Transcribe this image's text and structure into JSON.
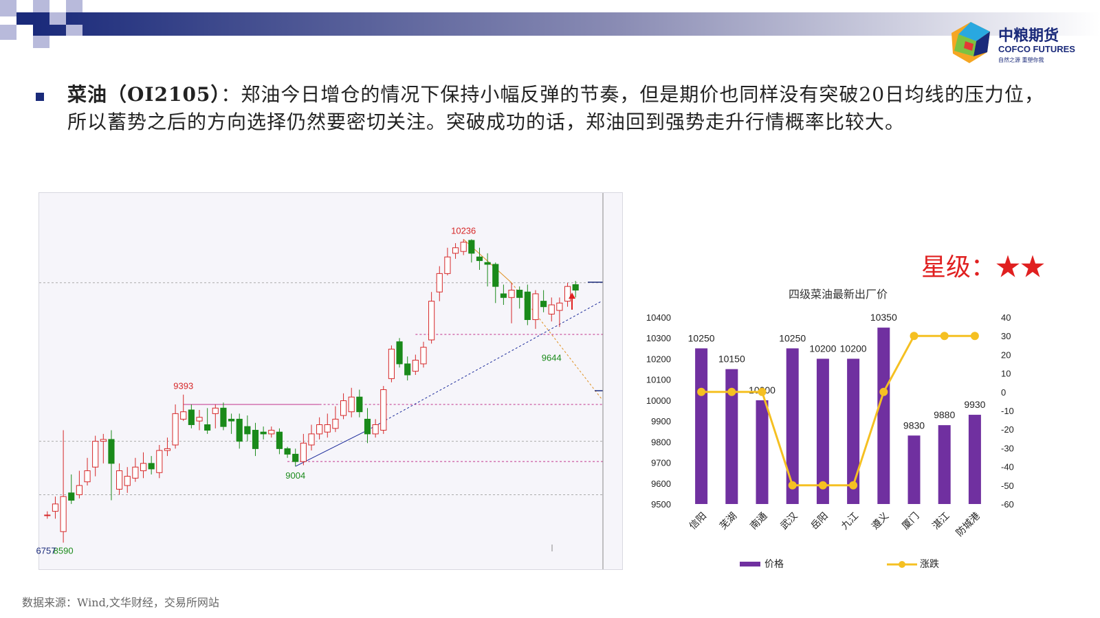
{
  "logo": {
    "cn": "中粮期货",
    "en": "COFCO FUTURES",
    "slogan": "自然之源 重塑你我"
  },
  "paragraph": {
    "lead": "菜油（OI2105）",
    "text": "：郑油今日增仓的情况下保持小幅反弹的节奏，但是期价也同样没有突破20日均线的压力位，所以蓄势之后的方向选择仍然要密切关注。突破成功的话，郑油回到强势走升行情概率比较大。"
  },
  "rating": {
    "label": "星级：",
    "stars": "★★"
  },
  "source": "数据来源：Wind,文华财经，交易所网站",
  "colors": {
    "header_dark": "#1a2a7a",
    "up": "#d62728",
    "down": "#1a8a1a",
    "bar": "#7030a0",
    "line": "#f5c022",
    "star": "#e02020"
  },
  "chart_data": [
    {
      "type": "candlestick",
      "annotations": [
        {
          "label": "10236",
          "value": 10236
        },
        {
          "label": "9393",
          "value": 9393
        },
        {
          "label": "9004",
          "value": 9004
        },
        {
          "label": "9644",
          "value": 9644
        },
        {
          "label": "8590",
          "value": 8590
        },
        {
          "label": "6757",
          "value": 6757
        }
      ],
      "ylim": [
        8550,
        10450
      ],
      "candles": [
        [
          8740,
          8740,
          8760,
          8720
        ],
        [
          8760,
          8800,
          8840,
          8720
        ],
        [
          8650,
          8840,
          9200,
          8590
        ],
        [
          8860,
          8820,
          8960,
          8800
        ],
        [
          8850,
          8900,
          8980,
          8830
        ],
        [
          8920,
          8980,
          9050,
          8900
        ],
        [
          9000,
          9140,
          9170,
          8950
        ],
        [
          9140,
          9150,
          9180,
          9020
        ],
        [
          9150,
          9020,
          9200,
          8820
        ],
        [
          8880,
          8980,
          9020,
          8850
        ],
        [
          8900,
          8950,
          9000,
          8860
        ],
        [
          8940,
          9000,
          9050,
          8920
        ],
        [
          8980,
          9020,
          9080,
          8940
        ],
        [
          9020,
          8990,
          9060,
          8960
        ],
        [
          8970,
          9090,
          9120,
          8940
        ],
        [
          9090,
          9100,
          9160,
          9060
        ],
        [
          9120,
          9290,
          9340,
          9100
        ],
        [
          9260,
          9300,
          9393,
          9250
        ],
        [
          9310,
          9230,
          9340,
          9210
        ],
        [
          9250,
          9270,
          9310,
          9200
        ],
        [
          9230,
          9200,
          9320,
          9180
        ],
        [
          9290,
          9320,
          9340,
          9210
        ],
        [
          9320,
          9220,
          9350,
          9200
        ],
        [
          9260,
          9250,
          9290,
          9180
        ],
        [
          9260,
          9140,
          9290,
          9100
        ],
        [
          9220,
          9180,
          9280,
          9140
        ],
        [
          9200,
          9100,
          9240,
          9060
        ],
        [
          9190,
          9180,
          9220,
          9150
        ],
        [
          9180,
          9200,
          9220,
          9160
        ],
        [
          9190,
          9100,
          9210,
          9070
        ],
        [
          9100,
          9070,
          9110,
          9050
        ],
        [
          9070,
          9030,
          9100,
          9004
        ],
        [
          9030,
          9130,
          9180,
          9010
        ],
        [
          9120,
          9180,
          9230,
          9090
        ],
        [
          9180,
          9230,
          9270,
          9150
        ],
        [
          9190,
          9230,
          9290,
          9160
        ],
        [
          9210,
          9260,
          9330,
          9190
        ],
        [
          9280,
          9360,
          9400,
          9260
        ],
        [
          9300,
          9380,
          9430,
          9270
        ],
        [
          9380,
          9300,
          9420,
          9270
        ],
        [
          9260,
          9180,
          9320,
          9130
        ],
        [
          9180,
          9230,
          9260,
          9160
        ],
        [
          9200,
          9420,
          9440,
          9180
        ],
        [
          9480,
          9640,
          9660,
          9460
        ],
        [
          9680,
          9560,
          9700,
          9540
        ],
        [
          9560,
          9500,
          9600,
          9470
        ],
        [
          9520,
          9580,
          9610,
          9500
        ],
        [
          9560,
          9650,
          9680,
          9540
        ],
        [
          9690,
          9900,
          9950,
          9670
        ],
        [
          9950,
          10050,
          10090,
          9900
        ],
        [
          10050,
          10140,
          10190,
          10040
        ],
        [
          10160,
          10190,
          10215,
          10130
        ],
        [
          10170,
          10220,
          10236,
          10150
        ],
        [
          10230,
          10160,
          10236,
          10110
        ],
        [
          10140,
          10120,
          10190,
          10070
        ],
        [
          10110,
          10100,
          10160,
          9980
        ],
        [
          10100,
          9980,
          10110,
          9890
        ],
        [
          9940,
          9920,
          9990,
          9880
        ],
        [
          9920,
          9960,
          10000,
          9780
        ],
        [
          9960,
          9920,
          9980,
          9860
        ],
        [
          9950,
          9800,
          9990,
          9770
        ],
        [
          9800,
          9940,
          9960,
          9750
        ],
        [
          9900,
          9870,
          9960,
          9840
        ],
        [
          9830,
          9880,
          9920,
          9790
        ],
        [
          9850,
          9890,
          9920,
          9760
        ],
        [
          9900,
          9980,
          10000,
          9870
        ],
        [
          9990,
          9960,
          10010,
          9920
        ]
      ]
    },
    {
      "type": "bar",
      "title": "四级菜油最新出厂价",
      "categories": [
        "信阳",
        "芜湖",
        "南通",
        "武汉",
        "岳阳",
        "九江",
        "遵义",
        "厦门",
        "湛江",
        "防城港"
      ],
      "series": [
        {
          "name": "价格",
          "type": "bar",
          "axis": "left",
          "values": [
            10250,
            10150,
            10000,
            10250,
            10200,
            10200,
            10350,
            9830,
            9880,
            9930
          ]
        },
        {
          "name": "涨跌",
          "type": "line",
          "axis": "right",
          "values": [
            0,
            0,
            0,
            -50,
            -50,
            -50,
            0,
            30,
            30,
            30
          ]
        }
      ],
      "ylim_left": [
        9500,
        10400
      ],
      "ylim_right": [
        -60,
        40
      ],
      "yticks_left": [
        9500,
        9600,
        9700,
        9800,
        9900,
        10000,
        10100,
        10200,
        10300,
        10400
      ],
      "yticks_right": [
        -60,
        -50,
        -40,
        -30,
        -20,
        -10,
        0,
        10,
        20,
        30,
        40
      ],
      "legend_position": "bottom"
    }
  ]
}
